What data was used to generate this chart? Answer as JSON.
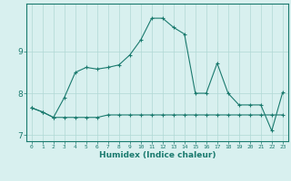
{
  "xlabel": "Humidex (Indice chaleur)",
  "x_values": [
    0,
    1,
    2,
    3,
    4,
    5,
    6,
    7,
    8,
    9,
    10,
    11,
    12,
    13,
    14,
    15,
    16,
    17,
    18,
    19,
    20,
    21,
    22,
    23
  ],
  "line1_y": [
    7.65,
    7.55,
    7.42,
    7.9,
    8.5,
    8.62,
    8.58,
    8.62,
    8.68,
    8.92,
    9.28,
    9.8,
    9.8,
    9.58,
    9.42,
    8.0,
    8.0,
    8.72,
    8.0,
    7.72,
    7.72,
    7.72,
    7.1,
    8.02
  ],
  "line2_y": [
    7.65,
    7.55,
    7.42,
    7.42,
    7.42,
    7.42,
    7.42,
    7.48,
    7.48,
    7.48,
    7.48,
    7.48,
    7.48,
    7.48,
    7.48,
    7.48,
    7.48,
    7.48,
    7.48,
    7.48,
    7.48,
    7.48,
    7.48,
    7.48
  ],
  "line_color": "#1a7a6e",
  "bg_color": "#d8f0ef",
  "grid_color": "#b0d8d5",
  "ylim": [
    6.85,
    10.15
  ],
  "yticks": [
    7,
    8,
    9
  ],
  "xlim": [
    -0.5,
    23.5
  ]
}
